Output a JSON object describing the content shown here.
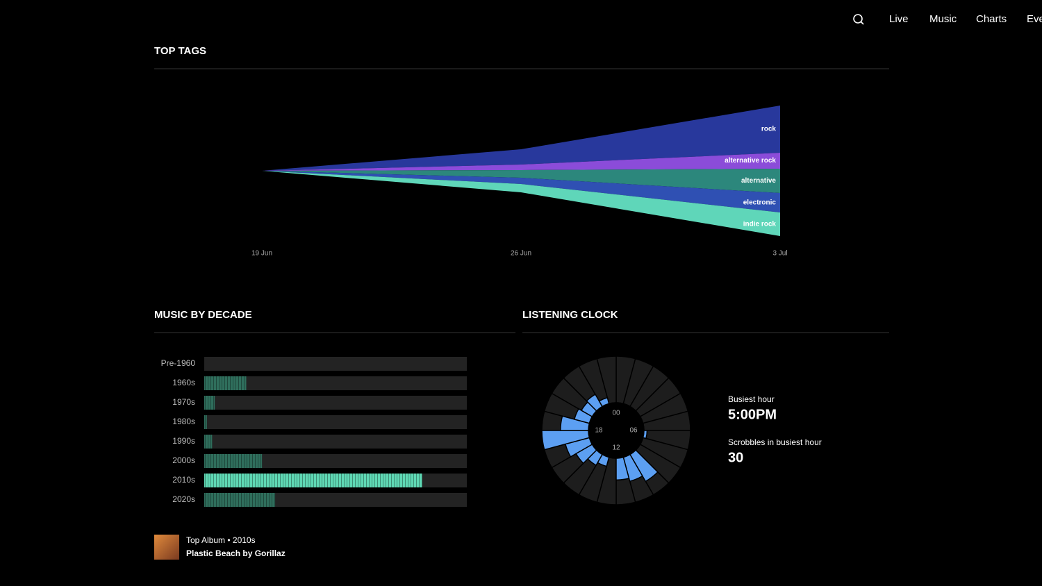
{
  "nav": [
    "Live",
    "Music",
    "Charts",
    "Eve"
  ],
  "sections": [
    "TOP TAGS",
    "MUSIC BY DECADE",
    "LISTENING CLOCK"
  ],
  "chart_data": [
    {
      "type": "streamgraph",
      "categories": [
        "19 Jun",
        "26 Jun",
        "3 Jul"
      ],
      "series": [
        {
          "name": "rock",
          "color": "#28389c",
          "values": [
            0,
            22,
            68
          ]
        },
        {
          "name": "alternative rock",
          "color": "#8b4cd9",
          "values": [
            0,
            8,
            23
          ]
        },
        {
          "name": "alternative",
          "color": "#2c877c",
          "values": [
            0,
            11,
            35
          ]
        },
        {
          "name": "electronic",
          "color": "#2f50b3",
          "values": [
            0,
            9,
            28
          ]
        },
        {
          "name": "indie rock",
          "color": "#5fd6b9",
          "values": [
            0,
            12,
            34
          ]
        }
      ]
    },
    {
      "type": "hbar",
      "categories": [
        "Pre-1960",
        "1960s",
        "1970s",
        "1980s",
        "1990s",
        "2000s",
        "2010s",
        "2020s"
      ],
      "values": [
        0,
        16,
        4,
        1,
        3,
        22,
        83,
        27
      ],
      "colors": [
        "#2f6e5c",
        "#2f6e5c",
        "#2f6e5c",
        "#2f6e5c",
        "#2f6e5c",
        "#2f6e5c",
        "#5fd8b4",
        "#2f6e5c"
      ],
      "track_color": "#232323",
      "xlim": [
        0,
        100
      ]
    },
    {
      "type": "polar_bar",
      "values": [
        0,
        0,
        0,
        0,
        0,
        0,
        2,
        0,
        0,
        20,
        16,
        14,
        0,
        6,
        8,
        12,
        16,
        30,
        18,
        10,
        8,
        9,
        4,
        0
      ],
      "color": "#5c9ff2",
      "track_color": "#1d1d1d",
      "thetalim": [
        0,
        24
      ],
      "rlim": [
        0,
        30
      ],
      "ticks": [
        {
          "value": 0,
          "label": "00"
        },
        {
          "value": 6,
          "label": "06"
        },
        {
          "value": 12,
          "label": "12"
        },
        {
          "value": 18,
          "label": "18"
        }
      ]
    }
  ],
  "stats": [
    {
      "label": "Busiest hour",
      "value": "5:00PM"
    },
    {
      "label": "Scrobbles in busiest hour",
      "value": 30
    }
  ],
  "album": {
    "caption": "Top Album • 2010s",
    "title": "Plastic Beach by Gorillaz"
  }
}
